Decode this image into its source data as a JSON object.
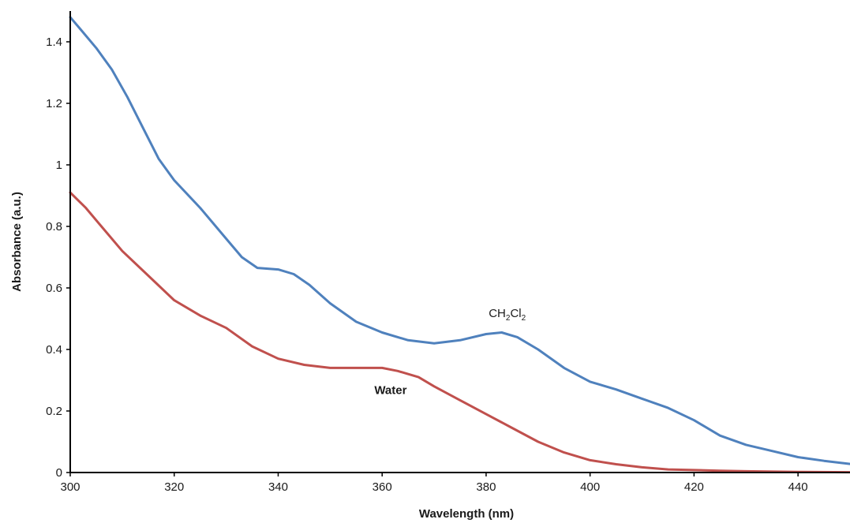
{
  "chart_data": {
    "type": "line",
    "title": "",
    "xlabel": "Wavelength (nm)",
    "ylabel": "Absorbance (a.u.)",
    "xlim": [
      300,
      450
    ],
    "ylim": [
      0,
      1.5
    ],
    "x_ticks": [
      300,
      320,
      340,
      360,
      380,
      400,
      420,
      440
    ],
    "x_tick_labels": [
      "300",
      "320",
      "340",
      "360",
      "380",
      "400",
      "420",
      "440"
    ],
    "y_ticks": [
      0,
      0.2,
      0.4,
      0.6,
      0.8,
      1,
      1.2,
      1.4
    ],
    "y_tick_labels": [
      "0",
      "0.2",
      "0.4",
      "0.6",
      "0.8",
      "1",
      "1.2",
      "1.4"
    ],
    "grid": false,
    "legend": "none",
    "series": [
      {
        "name": "CH2Cl2",
        "label_main": "CH",
        "label_sub1": "2",
        "label_mid": "Cl",
        "label_sub2": "2",
        "color": "#4f81bd",
        "points": [
          [
            300,
            1.48
          ],
          [
            302,
            1.44
          ],
          [
            305,
            1.38
          ],
          [
            308,
            1.31
          ],
          [
            311,
            1.22
          ],
          [
            314,
            1.12
          ],
          [
            317,
            1.02
          ],
          [
            320,
            0.95
          ],
          [
            325,
            0.86
          ],
          [
            330,
            0.76
          ],
          [
            333,
            0.7
          ],
          [
            336,
            0.665
          ],
          [
            340,
            0.66
          ],
          [
            343,
            0.645
          ],
          [
            346,
            0.61
          ],
          [
            350,
            0.55
          ],
          [
            355,
            0.49
          ],
          [
            360,
            0.455
          ],
          [
            365,
            0.43
          ],
          [
            370,
            0.42
          ],
          [
            375,
            0.43
          ],
          [
            380,
            0.45
          ],
          [
            383,
            0.455
          ],
          [
            386,
            0.44
          ],
          [
            390,
            0.4
          ],
          [
            395,
            0.34
          ],
          [
            400,
            0.295
          ],
          [
            405,
            0.27
          ],
          [
            410,
            0.24
          ],
          [
            415,
            0.21
          ],
          [
            420,
            0.17
          ],
          [
            425,
            0.12
          ],
          [
            430,
            0.09
          ],
          [
            435,
            0.07
          ],
          [
            440,
            0.05
          ],
          [
            445,
            0.038
          ],
          [
            450,
            0.028
          ]
        ]
      },
      {
        "name": "Water",
        "label": "Water",
        "color": "#c0504d",
        "points": [
          [
            300,
            0.91
          ],
          [
            303,
            0.86
          ],
          [
            306,
            0.8
          ],
          [
            310,
            0.72
          ],
          [
            315,
            0.64
          ],
          [
            320,
            0.56
          ],
          [
            325,
            0.51
          ],
          [
            330,
            0.47
          ],
          [
            335,
            0.41
          ],
          [
            340,
            0.37
          ],
          [
            345,
            0.35
          ],
          [
            350,
            0.34
          ],
          [
            355,
            0.34
          ],
          [
            360,
            0.34
          ],
          [
            363,
            0.33
          ],
          [
            367,
            0.31
          ],
          [
            370,
            0.28
          ],
          [
            375,
            0.235
          ],
          [
            380,
            0.19
          ],
          [
            385,
            0.145
          ],
          [
            390,
            0.1
          ],
          [
            395,
            0.065
          ],
          [
            400,
            0.04
          ],
          [
            405,
            0.027
          ],
          [
            410,
            0.017
          ],
          [
            415,
            0.01
          ],
          [
            420,
            0.008
          ],
          [
            425,
            0.006
          ],
          [
            430,
            0.004
          ],
          [
            440,
            0.002
          ],
          [
            450,
            0.001
          ]
        ]
      }
    ]
  }
}
